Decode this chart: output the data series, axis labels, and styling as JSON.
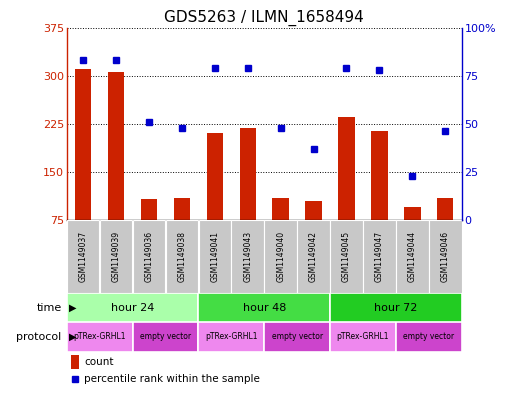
{
  "title": "GDS5263 / ILMN_1658494",
  "samples": [
    "GSM1149037",
    "GSM1149039",
    "GSM1149036",
    "GSM1149038",
    "GSM1149041",
    "GSM1149043",
    "GSM1149040",
    "GSM1149042",
    "GSM1149045",
    "GSM1149047",
    "GSM1149044",
    "GSM1149046"
  ],
  "counts": [
    310,
    305,
    108,
    110,
    210,
    218,
    110,
    105,
    235,
    213,
    95,
    110
  ],
  "percentiles": [
    83,
    83,
    51,
    48,
    79,
    79,
    48,
    37,
    79,
    78,
    23,
    46
  ],
  "time_groups": [
    {
      "label": "hour 24",
      "start": 0,
      "end": 4,
      "color": "#AAFFAA"
    },
    {
      "label": "hour 48",
      "start": 4,
      "end": 8,
      "color": "#44DD44"
    },
    {
      "label": "hour 72",
      "start": 8,
      "end": 12,
      "color": "#22CC22"
    }
  ],
  "protocol_groups": [
    {
      "label": "pTRex-GRHL1",
      "start": 0,
      "end": 2,
      "color": "#EE88EE"
    },
    {
      "label": "empty vector",
      "start": 2,
      "end": 4,
      "color": "#CC44CC"
    },
    {
      "label": "pTRex-GRHL1",
      "start": 4,
      "end": 6,
      "color": "#EE88EE"
    },
    {
      "label": "empty vector",
      "start": 6,
      "end": 8,
      "color": "#CC44CC"
    },
    {
      "label": "pTRex-GRHL1",
      "start": 8,
      "end": 10,
      "color": "#EE88EE"
    },
    {
      "label": "empty vector",
      "start": 10,
      "end": 12,
      "color": "#CC44CC"
    }
  ],
  "bar_color": "#CC2200",
  "dot_color": "#0000CC",
  "left_ylim": [
    75,
    375
  ],
  "left_yticks": [
    75,
    150,
    225,
    300,
    375
  ],
  "right_ylim": [
    0,
    100
  ],
  "right_yticks": [
    0,
    25,
    50,
    75,
    100
  ],
  "right_yticklabels": [
    "0",
    "25",
    "50",
    "75",
    "100%"
  ],
  "bg_color": "#FFFFFF",
  "sample_bg_color": "#C8C8C8",
  "title_fontsize": 11,
  "axis_color_left": "#CC2200",
  "axis_color_right": "#0000CC"
}
